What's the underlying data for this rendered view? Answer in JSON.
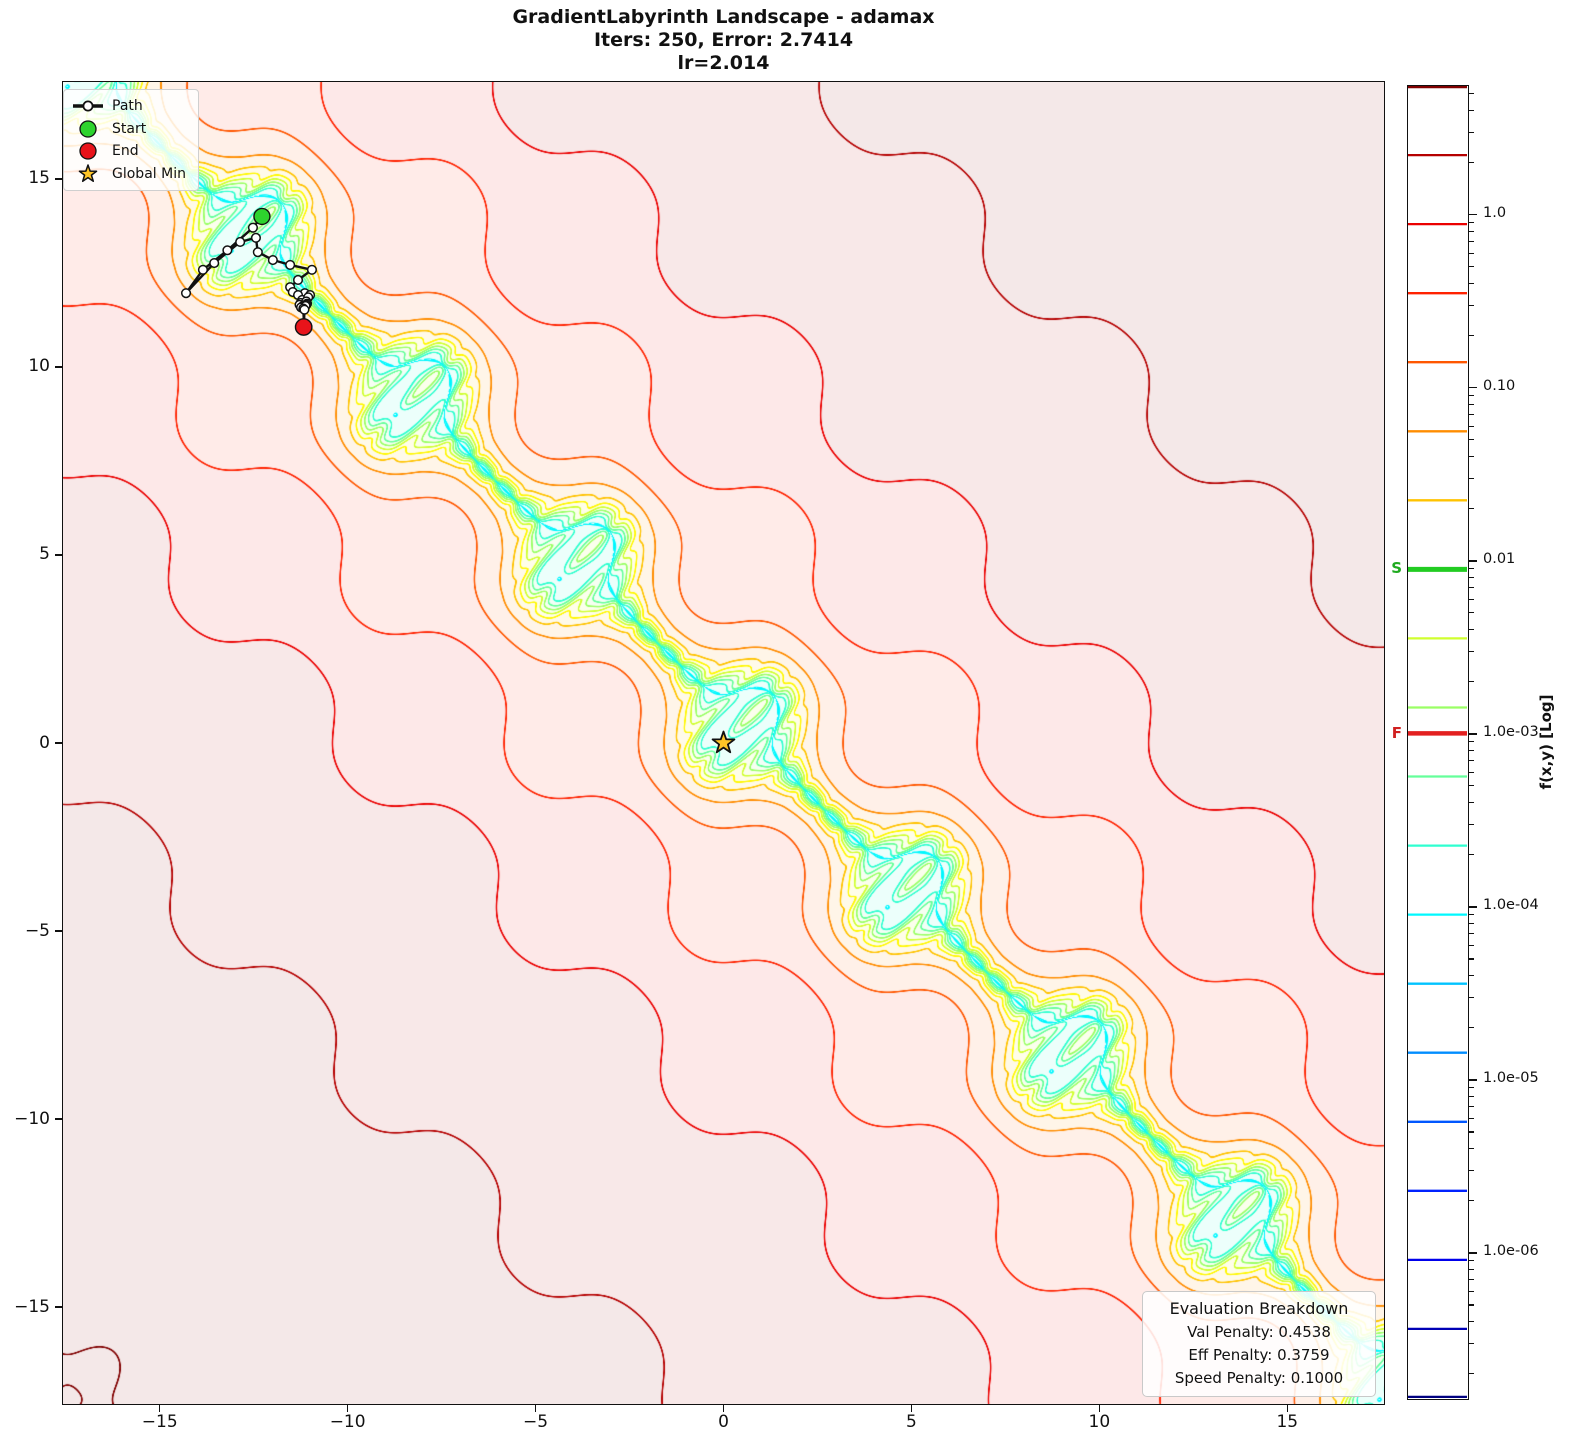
{
  "title": {
    "line1": "GradientLabyrinth Landscape - adamax",
    "line2": "Iters: 250, Error: 2.7414",
    "line3": "lr=2.014"
  },
  "legend": {
    "items": [
      {
        "label": "Path",
        "type": "path-line",
        "color": "#111111"
      },
      {
        "label": "Start",
        "type": "dot",
        "color": "#2ed32e"
      },
      {
        "label": "End",
        "type": "dot",
        "color": "#e8131a"
      },
      {
        "label": "Global Min",
        "type": "star",
        "color": "#ffc527"
      }
    ]
  },
  "axes": {
    "x_ticks": [
      {
        "v": -15,
        "label": "−15"
      },
      {
        "v": -10,
        "label": "−10"
      },
      {
        "v": -5,
        "label": "−5"
      },
      {
        "v": 0,
        "label": "0"
      },
      {
        "v": 5,
        "label": "5"
      },
      {
        "v": 10,
        "label": "10"
      },
      {
        "v": 15,
        "label": "15"
      }
    ],
    "y_ticks": [
      {
        "v": 15,
        "label": "15"
      },
      {
        "v": 10,
        "label": "10"
      },
      {
        "v": 5,
        "label": "5"
      },
      {
        "v": 0,
        "label": "0"
      },
      {
        "v": -5,
        "label": "−5"
      },
      {
        "v": -10,
        "label": "−10"
      },
      {
        "v": -15,
        "label": "−15"
      }
    ]
  },
  "colorbar": {
    "label": "f(x,y) [Log]",
    "top_log": 0.75,
    "bottom_log": -6.85,
    "level_step": 0.4,
    "n_levels": 20,
    "major_ticks": [
      {
        "log": 0,
        "label": "1.0"
      },
      {
        "log": -1,
        "label": "0.10"
      },
      {
        "log": -2,
        "label": "0.01"
      },
      {
        "log": -3,
        "label": "1.0e-03"
      },
      {
        "log": -4,
        "label": "1.0e-04"
      },
      {
        "log": -5,
        "label": "1.0e-05"
      },
      {
        "log": -6,
        "label": "1.0e-06"
      }
    ],
    "start_marker": {
      "letter": "S",
      "log": -2.05,
      "color": "#22cc22"
    },
    "final_marker": {
      "letter": "F",
      "log": -3.0,
      "color": "#e32020"
    }
  },
  "eval_box": {
    "title": "Evaluation Breakdown",
    "lines": [
      "Val Penalty: 0.4538",
      "Eff Penalty: 0.3759",
      "Speed Penalty: 0.1000"
    ]
  },
  "chart_data": {
    "type": "contour",
    "xlim": [
      -17.6,
      17.6
    ],
    "ylim": [
      -17.6,
      17.6
    ],
    "x_tick_values": [
      -15,
      -10,
      -5,
      0,
      5,
      10,
      15
    ],
    "y_tick_values": [
      15,
      10,
      5,
      0,
      -5,
      -10,
      -15
    ],
    "log_levels": {
      "top": 0.75,
      "step": 0.4,
      "count": 20
    },
    "colormap": "jet (high=dark red, low=dark navy)",
    "field": {
      "k": 1.44,
      "A": 0.85,
      "phi": 2.53,
      "C": 1.57,
      "D": 1.674,
      "eps": 0.03,
      "pocket_k": 5.76,
      "pocket_depth": 1.35,
      "pocket_width": 0.9,
      "fill_alpha": 0.09
    },
    "path": [
      [
        -12.28,
        14.0
      ],
      [
        -12.52,
        13.7
      ],
      [
        -13.2,
        13.1
      ],
      [
        -13.85,
        12.58
      ],
      [
        -14.3,
        11.96
      ],
      [
        -13.55,
        12.76
      ],
      [
        -12.86,
        13.32
      ],
      [
        -12.44,
        13.43
      ],
      [
        -12.39,
        13.05
      ],
      [
        -11.99,
        12.84
      ],
      [
        -11.53,
        12.71
      ],
      [
        -10.95,
        12.58
      ],
      [
        -11.32,
        12.31
      ],
      [
        -11.53,
        12.12
      ],
      [
        -11.46,
        11.99
      ],
      [
        -11.14,
        11.96
      ],
      [
        -11.0,
        11.91
      ],
      [
        -11.32,
        11.91
      ],
      [
        -11.21,
        11.78
      ],
      [
        -11.05,
        11.85
      ],
      [
        -11.25,
        11.7
      ],
      [
        -11.1,
        11.74
      ],
      [
        -11.28,
        11.65
      ],
      [
        -11.08,
        11.68
      ],
      [
        -11.2,
        11.61
      ],
      [
        -11.1,
        11.65
      ],
      [
        -11.24,
        11.58
      ],
      [
        -11.12,
        11.62
      ],
      [
        -11.18,
        11.55
      ],
      [
        -11.16,
        11.12
      ],
      [
        -11.15,
        11.52
      ],
      [
        -11.17,
        11.06
      ]
    ],
    "start": [
      -12.28,
      14.0
    ],
    "end": [
      -11.17,
      11.06
    ],
    "global_min": [
      0,
      0
    ]
  }
}
